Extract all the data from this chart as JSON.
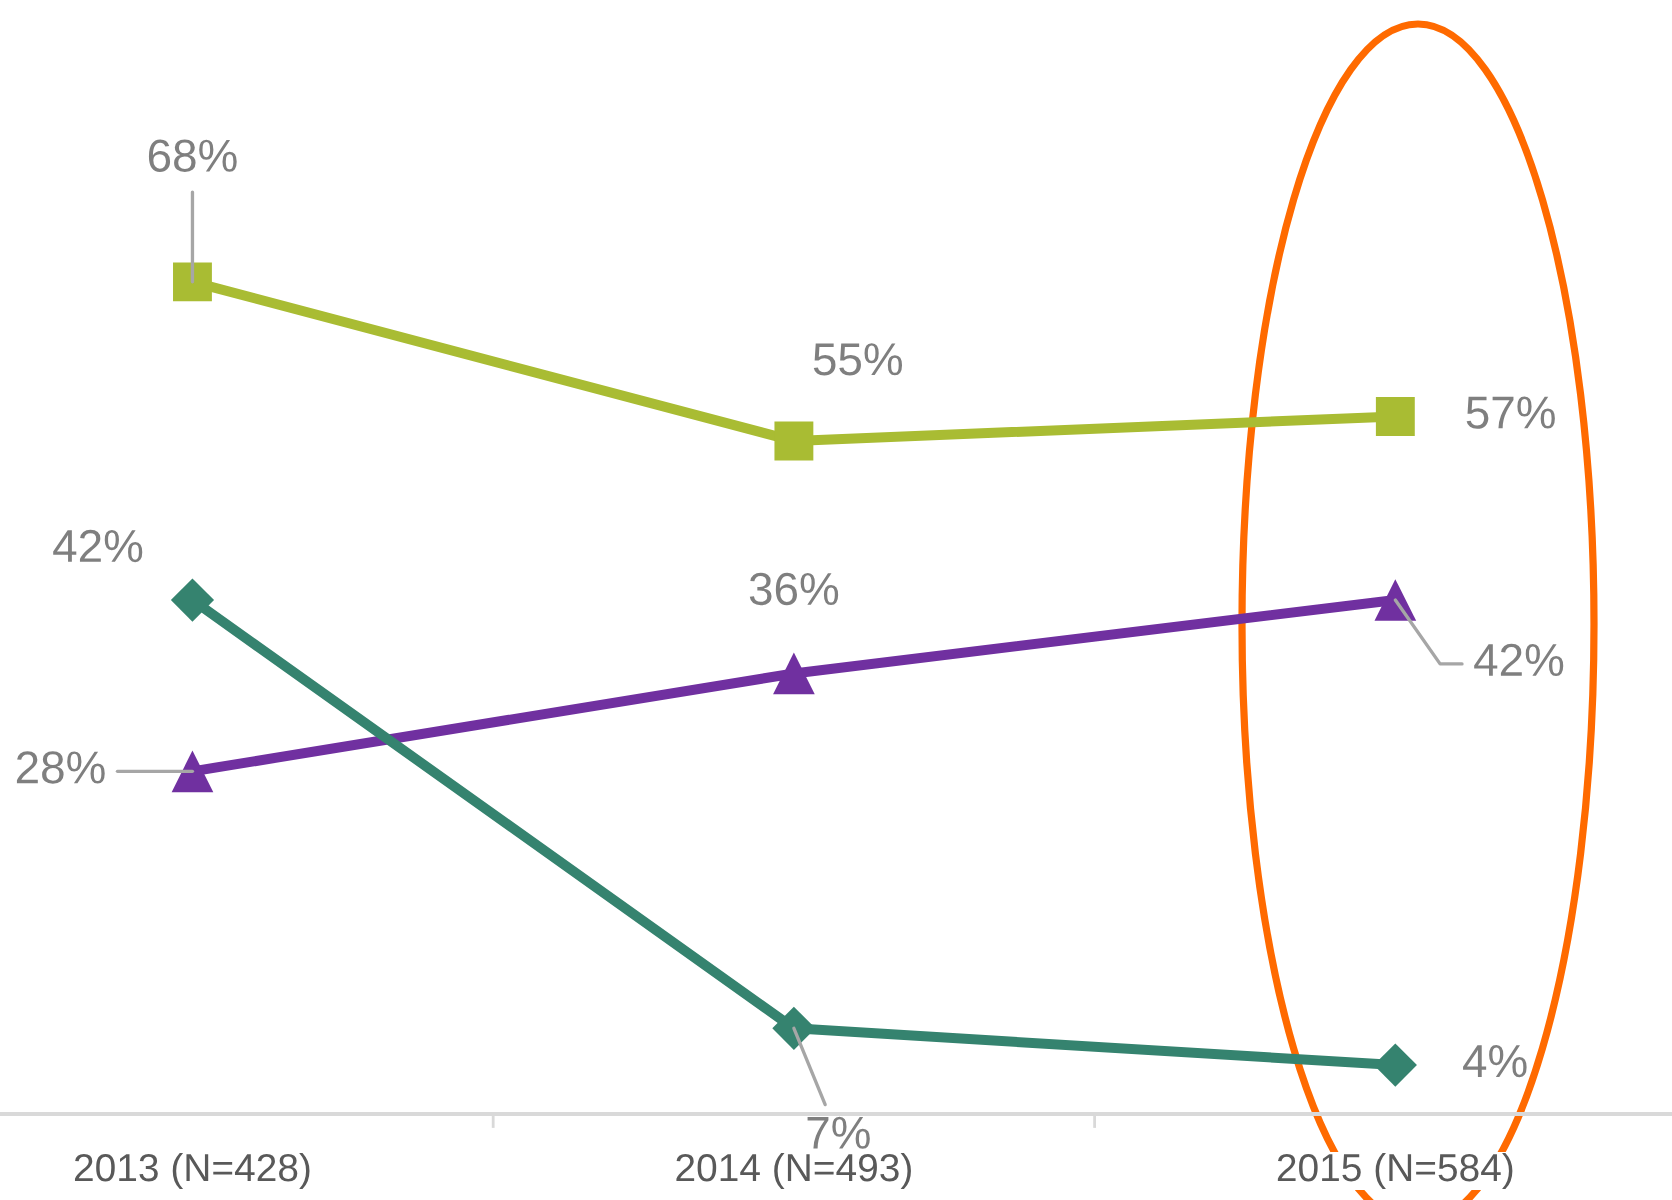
{
  "chart_data": {
    "type": "line",
    "categories": [
      "2013 (N=428)",
      "2014 (N=493)",
      "2015 (N=584)"
    ],
    "series": [
      {
        "color": "#a9bc33",
        "marker": "square",
        "values": [
          68,
          55,
          57
        ],
        "value_labels": [
          "68%",
          "55%",
          "57%"
        ]
      },
      {
        "color": "#7030a0",
        "marker": "triangle",
        "values": [
          28,
          36,
          42
        ],
        "value_labels": [
          "28%",
          "36%",
          "42%"
        ]
      },
      {
        "color": "#35836f",
        "marker": "diamond",
        "values": [
          42,
          7,
          4
        ],
        "value_labels": [
          "42%",
          "7%",
          "4%"
        ]
      }
    ]
  }
}
